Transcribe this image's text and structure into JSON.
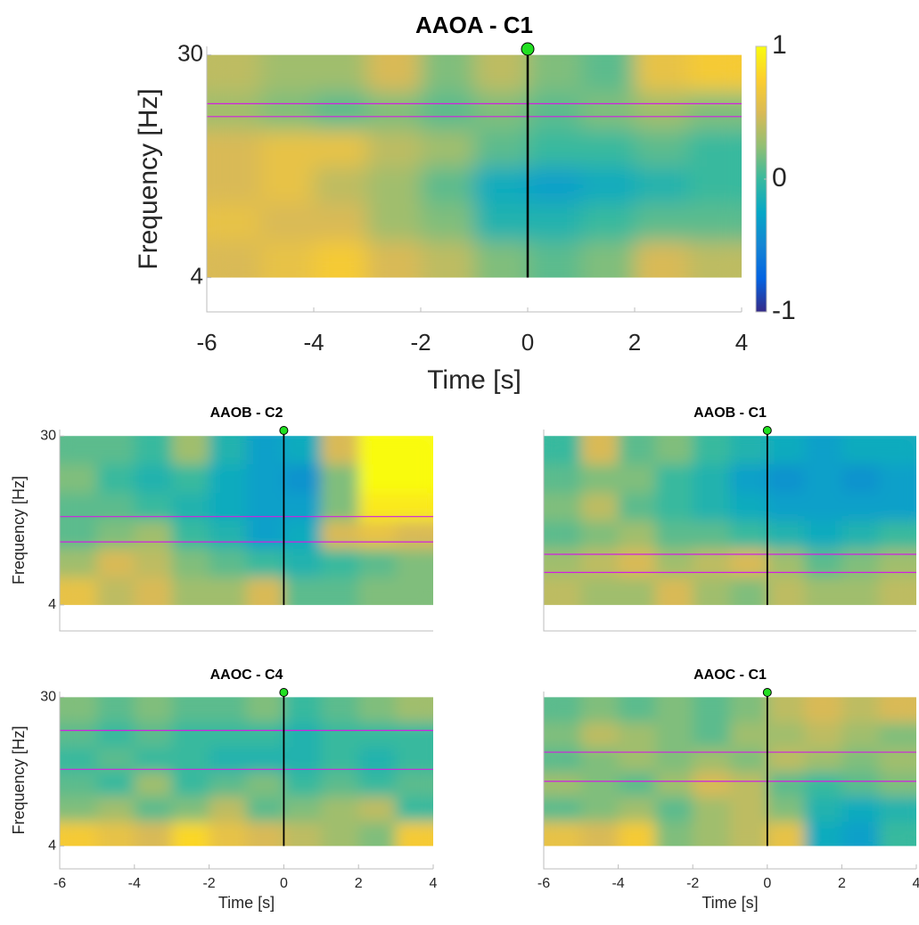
{
  "chart_data": [
    {
      "type": "heatmap",
      "title": "AAOA - C1",
      "xlabel": "Time [s]",
      "ylabel": "Frequency [Hz]",
      "xlim": [
        -6,
        4
      ],
      "ylim": [
        0,
        31
      ],
      "xticks": [
        -6,
        -4,
        -2,
        0,
        2,
        4
      ],
      "yticks": [
        4,
        30
      ],
      "xbins": [
        -6,
        -5,
        -4,
        -3,
        -2,
        -1,
        0,
        1,
        2,
        3,
        4
      ],
      "ybins": [
        4,
        8.3,
        12.7,
        17,
        21.3,
        25.7,
        30
      ],
      "values": [
        [
          0.5,
          0.6,
          0.7,
          0.5,
          0.4,
          0.2,
          0.1,
          0.2,
          0.5,
          0.4
        ],
        [
          0.6,
          0.5,
          0.5,
          0.3,
          0.2,
          -0.1,
          -0.1,
          0,
          0.1,
          0.1
        ],
        [
          0.5,
          0.6,
          0.4,
          0.3,
          0.1,
          -0.2,
          -0.3,
          -0.2,
          -0.1,
          0
        ],
        [
          0.5,
          0.6,
          0.6,
          0.4,
          0.3,
          0.1,
          0,
          0,
          0.1,
          0
        ],
        [
          0.3,
          0.2,
          0.1,
          0.2,
          0.1,
          0.2,
          0.1,
          0.2,
          0.3,
          0.2
        ],
        [
          0.4,
          0.3,
          0.3,
          0.5,
          0.2,
          0.4,
          0.2,
          0.1,
          0.6,
          0.7
        ]
      ],
      "event_x": 0,
      "band_lines": [
        22.8,
        24.3
      ],
      "clim": [
        -1,
        1
      ],
      "cticks": [
        -1,
        0,
        1
      ],
      "colormap": [
        "#352a87",
        "#0363e1",
        "#1485d4",
        "#06a7c6",
        "#38b99e",
        "#92bf73",
        "#d9ba56",
        "#fcce2e",
        "#f9fb0e"
      ]
    },
    {
      "type": "heatmap",
      "title": "AAOB - C2",
      "ylabel": "Frequency [Hz]",
      "xlim": [
        -6,
        4
      ],
      "ylim": [
        0,
        31
      ],
      "yticks": [
        4,
        30
      ],
      "xbins": [
        -6,
        -5,
        -4,
        -3,
        -2,
        -1,
        0,
        1,
        2,
        3,
        4
      ],
      "ybins": [
        4,
        8.3,
        12.7,
        17,
        21.3,
        25.7,
        30
      ],
      "values": [
        [
          0.6,
          0.4,
          0.5,
          0.3,
          0.3,
          0.5,
          0.1,
          0.1,
          0.2,
          0.2
        ],
        [
          0.3,
          0.5,
          0.4,
          0.2,
          0.1,
          0,
          -0.1,
          0,
          0.1,
          0.2
        ],
        [
          0.1,
          0.2,
          0.3,
          0,
          -0.1,
          -0.3,
          -0.2,
          0.5,
          0.6,
          0.5
        ],
        [
          0.1,
          0.1,
          0,
          -0.1,
          -0.2,
          -0.3,
          -0.3,
          0.2,
          0.9,
          0.9
        ],
        [
          0.2,
          0,
          -0.1,
          0,
          -0.2,
          -0.3,
          -0.4,
          0.2,
          1,
          1
        ],
        [
          0.1,
          0.1,
          0,
          0.3,
          -0.1,
          -0.3,
          -0.2,
          0.5,
          1,
          1
        ]
      ],
      "event_x": 0,
      "band_lines": [
        13.7,
        17.6
      ]
    },
    {
      "type": "heatmap",
      "title": "AAOB - C1",
      "xlim": [
        -6,
        4
      ],
      "ylim": [
        0,
        31
      ],
      "xbins": [
        -6,
        -5,
        -4,
        -3,
        -2,
        -1,
        0,
        1,
        2,
        3,
        4
      ],
      "ybins": [
        4,
        8.3,
        12.7,
        17,
        21.3,
        25.7,
        30
      ],
      "values": [
        [
          0.4,
          0.3,
          0.3,
          0.5,
          0.3,
          0.2,
          0.4,
          0.3,
          0.3,
          0.4
        ],
        [
          0.3,
          0.4,
          0.5,
          0.3,
          0.4,
          0.5,
          0.3,
          0.1,
          0.2,
          0.3
        ],
        [
          0.1,
          0.2,
          0.3,
          0.1,
          0.1,
          0,
          -0.1,
          -0.2,
          -0.1,
          0
        ],
        [
          0.2,
          0.4,
          0.1,
          0,
          -0.1,
          -0.2,
          -0.3,
          -0.3,
          -0.3,
          -0.3
        ],
        [
          0.1,
          0.2,
          0.2,
          0,
          -0.1,
          -0.3,
          -0.4,
          -0.3,
          -0.4,
          -0.3
        ],
        [
          0,
          0.5,
          0.1,
          0.2,
          0,
          -0.1,
          -0.2,
          -0.3,
          -0.2,
          -0.2
        ]
      ],
      "event_x": 0,
      "band_lines": [
        9.0,
        11.8
      ]
    },
    {
      "type": "heatmap",
      "title": "AAOC - C4",
      "xlabel": "Time [s]",
      "ylabel": "Frequency [Hz]",
      "xlim": [
        -6,
        4
      ],
      "ylim": [
        0,
        31
      ],
      "xticks": [
        -6,
        -4,
        -2,
        0,
        2,
        4
      ],
      "yticks": [
        4,
        30
      ],
      "xbins": [
        -6,
        -5,
        -4,
        -3,
        -2,
        -1,
        0,
        1,
        2,
        3,
        4
      ],
      "ybins": [
        4,
        8.3,
        12.7,
        17,
        21.3,
        25.7,
        30
      ],
      "values": [
        [
          0.7,
          0.6,
          0.5,
          0.8,
          0.6,
          0.5,
          0.4,
          0.3,
          0.2,
          0.7
        ],
        [
          0.2,
          0.3,
          0.1,
          0.2,
          0.4,
          0.1,
          0.2,
          0.3,
          0.4,
          0
        ],
        [
          0.1,
          0,
          0.3,
          0,
          0.1,
          0.2,
          0,
          0.1,
          0,
          0.1
        ],
        [
          0,
          0.1,
          0,
          0,
          -0.1,
          -0.1,
          -0.1,
          0,
          -0.1,
          0
        ],
        [
          0.1,
          0,
          0.1,
          0,
          0,
          0,
          -0.1,
          0,
          0,
          0
        ],
        [
          0.2,
          0.1,
          0.2,
          0.1,
          0.1,
          0.2,
          0,
          0.1,
          0.2,
          0.3
        ]
      ],
      "event_x": 0,
      "band_lines": [
        17.4,
        24.2
      ]
    },
    {
      "type": "heatmap",
      "title": "AAOC - C1",
      "xlabel": "Time [s]",
      "xlim": [
        -6,
        4
      ],
      "ylim": [
        0,
        31
      ],
      "xticks": [
        -6,
        -4,
        -2,
        0,
        2,
        4
      ],
      "xbins": [
        -6,
        -5,
        -4,
        -3,
        -2,
        -1,
        0,
        1,
        2,
        3,
        4
      ],
      "ybins": [
        4,
        8.3,
        12.7,
        17,
        21.3,
        25.7,
        30
      ],
      "values": [
        [
          0.6,
          0.5,
          0.7,
          0.2,
          0.3,
          0.4,
          0.6,
          -0.2,
          -0.3,
          0
        ],
        [
          0.1,
          0.2,
          0.3,
          0.1,
          0.3,
          0.4,
          0.2,
          -0.1,
          -0.2,
          -0.1
        ],
        [
          0.3,
          0.2,
          0.1,
          0.3,
          0.5,
          0.4,
          0.1,
          0,
          0.1,
          0.2
        ],
        [
          0.1,
          0.2,
          0.3,
          0.2,
          0.3,
          0.2,
          0.4,
          0.3,
          0.2,
          0.3
        ],
        [
          0.2,
          0.4,
          0.3,
          0.2,
          0.1,
          0.3,
          0.3,
          0.4,
          0.3,
          0.2
        ],
        [
          0.1,
          0.2,
          0.1,
          0.2,
          0.1,
          0.2,
          0.4,
          0.5,
          0.4,
          0.5
        ]
      ],
      "event_x": 0,
      "band_lines": [
        15.3,
        20.4
      ]
    }
  ]
}
